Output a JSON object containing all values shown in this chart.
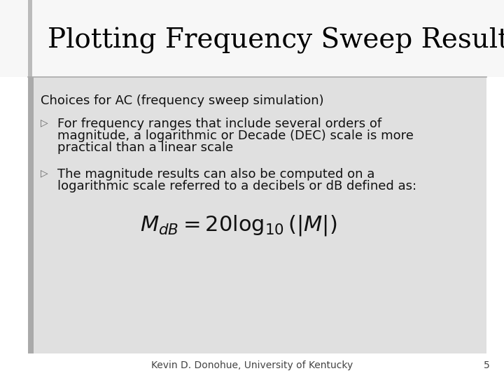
{
  "title": "Plotting Frequency Sweep Results",
  "background_color": "#e8e8e8",
  "slide_bg": "#ffffff",
  "content_bg": "#e0e0e0",
  "title_fontsize": 28,
  "body_fontsize": 13,
  "footer_fontsize": 10,
  "label_text": "Choices for AC (frequency sweep simulation)",
  "bullet1_line1": "For frequency ranges that include several orders of",
  "bullet1_line2": "magnitude, a logarithmic or Decade (DEC) scale is more",
  "bullet1_line3": "practical than a linear scale",
  "bullet2_line1": "The magnitude results can also be computed on a",
  "bullet2_line2": "logarithmic scale referred to a decibels or dB defined as:",
  "formula": "$M_{dB} = 20\\log_{10}(|M|)$",
  "footer": "Kevin D. Donohue, University of Kentucky",
  "page_num": "5",
  "left_bar_color": "#c0c0c0",
  "title_color": "#000000",
  "text_color": "#111111",
  "footer_color": "#444444",
  "bullet_color": "#666666",
  "divider_color": "#aaaaaa"
}
